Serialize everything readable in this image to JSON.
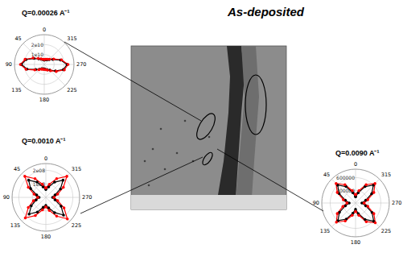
{
  "figure_title": "As-deposited",
  "chart_data": [
    {
      "type": "polar",
      "title": "Q=0.00026 A⁻¹",
      "theta": [
        0,
        15,
        30,
        45,
        60,
        75,
        90,
        105,
        120,
        135,
        150,
        165,
        180,
        195,
        210,
        225,
        240,
        255,
        270,
        285,
        300,
        315,
        330,
        345
      ],
      "thetaticks": [
        0,
        45,
        90,
        135,
        180,
        225,
        270,
        315
      ],
      "rlim": [
        0,
        30000000000
      ],
      "rticks": [
        {
          "value": 10000000000,
          "label": "1e10"
        },
        {
          "value": 20000000000,
          "label": "2e10"
        }
      ],
      "grid": true,
      "series": [
        {
          "color": "#000000",
          "marker": "circle",
          "line_style": "solid",
          "values": [
            4500000000,
            5000000000,
            6000000000,
            8000000000,
            12000000000,
            19000000000,
            23000000000,
            18000000000,
            10000000000,
            7000000000,
            5000000000,
            4500000000,
            4500000000,
            5000000000,
            6000000000,
            8000000000,
            13000000000,
            20000000000,
            23000000000,
            17000000000,
            10000000000,
            7000000000,
            5500000000,
            5000000000
          ]
        },
        {
          "color": "#ff0000",
          "marker": "circle",
          "line_style": "solid",
          "values": [
            5000000000,
            5500000000,
            6500000000,
            8500000000,
            13000000000,
            20000000000,
            24000000000,
            19000000000,
            11000000000,
            7500000000,
            5500000000,
            5000000000,
            5000000000,
            5500000000,
            6500000000,
            9000000000,
            14000000000,
            21000000000,
            24000000000,
            18000000000,
            11000000000,
            7500000000,
            6000000000,
            5500000000
          ]
        }
      ]
    },
    {
      "type": "polar",
      "title": "Q=0.0010 A⁻¹",
      "theta": [
        0,
        15,
        30,
        45,
        60,
        75,
        90,
        105,
        120,
        135,
        150,
        165,
        180,
        195,
        210,
        225,
        240,
        255,
        270,
        285,
        300,
        315,
        330,
        345
      ],
      "thetaticks": [
        0,
        45,
        90,
        135,
        180,
        225,
        270,
        315
      ],
      "rlim": [
        0,
        250000000
      ],
      "rticks": [
        {
          "value": 100000000,
          "label": "1e08"
        },
        {
          "value": 200000000,
          "label": "2e08"
        }
      ],
      "grid": true,
      "series": [
        {
          "color": "#000000",
          "marker": "circle",
          "line_style": "solid",
          "values": [
            60000000,
            80000000,
            130000000,
            180000000,
            130000000,
            70000000,
            50000000,
            75000000,
            125000000,
            175000000,
            125000000,
            75000000,
            60000000,
            80000000,
            130000000,
            185000000,
            130000000,
            70000000,
            50000000,
            70000000,
            125000000,
            180000000,
            130000000,
            80000000
          ]
        },
        {
          "color": "#ff0000",
          "marker": "circle",
          "line_style": "solid",
          "values": [
            70000000,
            100000000,
            160000000,
            220000000,
            150000000,
            90000000,
            60000000,
            95000000,
            150000000,
            215000000,
            155000000,
            95000000,
            70000000,
            100000000,
            160000000,
            225000000,
            155000000,
            90000000,
            60000000,
            90000000,
            150000000,
            220000000,
            160000000,
            100000000
          ]
        }
      ]
    },
    {
      "type": "polar",
      "title": "Q=0.0090 A⁻¹",
      "theta": [
        0,
        15,
        30,
        45,
        60,
        75,
        90,
        105,
        120,
        135,
        150,
        165,
        180,
        195,
        210,
        225,
        240,
        255,
        270,
        285,
        300,
        315,
        330,
        345
      ],
      "thetaticks": [
        0,
        45,
        90,
        135,
        180,
        225,
        270,
        315
      ],
      "rlim": [
        0,
        800000
      ],
      "rticks": [
        {
          "value": 300000,
          "label": "300000"
        },
        {
          "value": 600000,
          "label": "600000"
        }
      ],
      "grid": true,
      "series": [
        {
          "color": "#000000",
          "marker": "circle",
          "line_style": "solid",
          "values": [
            150000,
            250000,
            450000,
            600000,
            450000,
            250000,
            150000,
            250000,
            440000,
            590000,
            440000,
            250000,
            150000,
            260000,
            450000,
            610000,
            450000,
            250000,
            150000,
            250000,
            440000,
            600000,
            450000,
            250000
          ]
        },
        {
          "color": "#ff0000",
          "marker": "circle",
          "line_style": "solid",
          "values": [
            200000,
            300000,
            500000,
            650000,
            500000,
            300000,
            200000,
            310000,
            500000,
            640000,
            490000,
            300000,
            200000,
            300000,
            510000,
            660000,
            500000,
            300000,
            200000,
            300000,
            500000,
            650000,
            500000,
            300000
          ]
        }
      ]
    }
  ]
}
